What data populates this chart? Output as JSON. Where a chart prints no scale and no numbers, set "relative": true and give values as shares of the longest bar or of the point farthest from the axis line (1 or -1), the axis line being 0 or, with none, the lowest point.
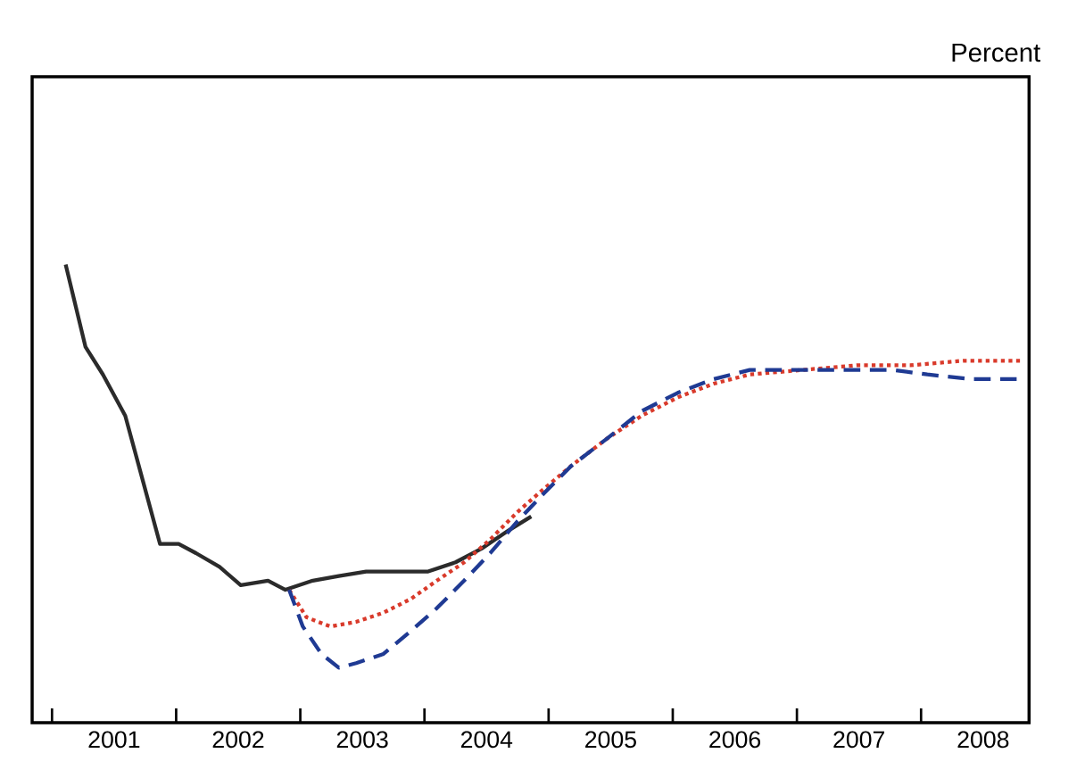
{
  "chart_data": {
    "type": "line",
    "relative": true,
    "annotations": [
      "Percent"
    ],
    "xlim": [
      2000.84,
      2008.87
    ],
    "xticks": [
      {
        "value": 2001,
        "label": null
      },
      {
        "value": 2001.5,
        "label": "2001"
      },
      {
        "value": 2002,
        "label": null
      },
      {
        "value": 2002.5,
        "label": "2002"
      },
      {
        "value": 2003,
        "label": null
      },
      {
        "value": 2003.5,
        "label": "2003"
      },
      {
        "value": 2004,
        "label": null
      },
      {
        "value": 2004.5,
        "label": "2004"
      },
      {
        "value": 2005,
        "label": null
      },
      {
        "value": 2005.5,
        "label": "2005"
      },
      {
        "value": 2006,
        "label": null
      },
      {
        "value": 2006.5,
        "label": "2006"
      },
      {
        "value": 2007,
        "label": null
      },
      {
        "value": 2007.5,
        "label": "2007"
      },
      {
        "value": 2008,
        "label": null
      },
      {
        "value": 2008.5,
        "label": "2008"
      }
    ],
    "marker": "none",
    "series": [
      {
        "color": "#2b2b2b",
        "line_style": "solid",
        "x": [
          2001.11,
          2001.27,
          2001.41,
          2001.59,
          2001.73,
          2001.87,
          2002.02,
          2002.16,
          2002.35,
          2002.52,
          2002.74,
          2002.88,
          2003.1,
          2003.31,
          2003.53,
          2003.74,
          2004.03,
          2004.25,
          2004.46,
          2004.68,
          2004.86
        ],
        "values": [
          1.0,
          0.82,
          0.76,
          0.67,
          0.53,
          0.39,
          0.39,
          0.37,
          0.34,
          0.3,
          0.31,
          0.29,
          0.31,
          0.32,
          0.33,
          0.33,
          0.33,
          0.35,
          0.38,
          0.42,
          0.45
        ]
      },
      {
        "color": "#d93a2b",
        "line_style": "dotted",
        "x": [
          2002.91,
          2003.05,
          2003.24,
          2003.45,
          2003.67,
          2003.89,
          2004.1,
          2004.32,
          2004.53,
          2004.75,
          2004.96,
          2005.18,
          2005.47,
          2005.75,
          2006.04,
          2006.33,
          2006.62,
          2007.05,
          2007.48,
          2007.91,
          2008.34,
          2008.82
        ],
        "values": [
          0.29,
          0.23,
          0.21,
          0.22,
          0.24,
          0.27,
          0.31,
          0.35,
          0.4,
          0.46,
          0.51,
          0.56,
          0.62,
          0.67,
          0.71,
          0.74,
          0.76,
          0.77,
          0.78,
          0.78,
          0.79,
          0.79
        ]
      },
      {
        "color": "#1f3a93",
        "line_style": "dashed",
        "x": [
          2002.91,
          2003.02,
          2003.17,
          2003.31,
          2003.45,
          2003.67,
          2003.89,
          2004.1,
          2004.32,
          2004.53,
          2004.75,
          2004.96,
          2005.18,
          2005.47,
          2005.75,
          2006.04,
          2006.33,
          2006.62,
          2007.05,
          2007.48,
          2007.77,
          2008.05,
          2008.41,
          2008.77
        ],
        "values": [
          0.29,
          0.21,
          0.15,
          0.12,
          0.13,
          0.15,
          0.2,
          0.25,
          0.31,
          0.37,
          0.44,
          0.5,
          0.56,
          0.62,
          0.68,
          0.72,
          0.75,
          0.77,
          0.77,
          0.77,
          0.77,
          0.76,
          0.75,
          0.75
        ]
      }
    ]
  }
}
